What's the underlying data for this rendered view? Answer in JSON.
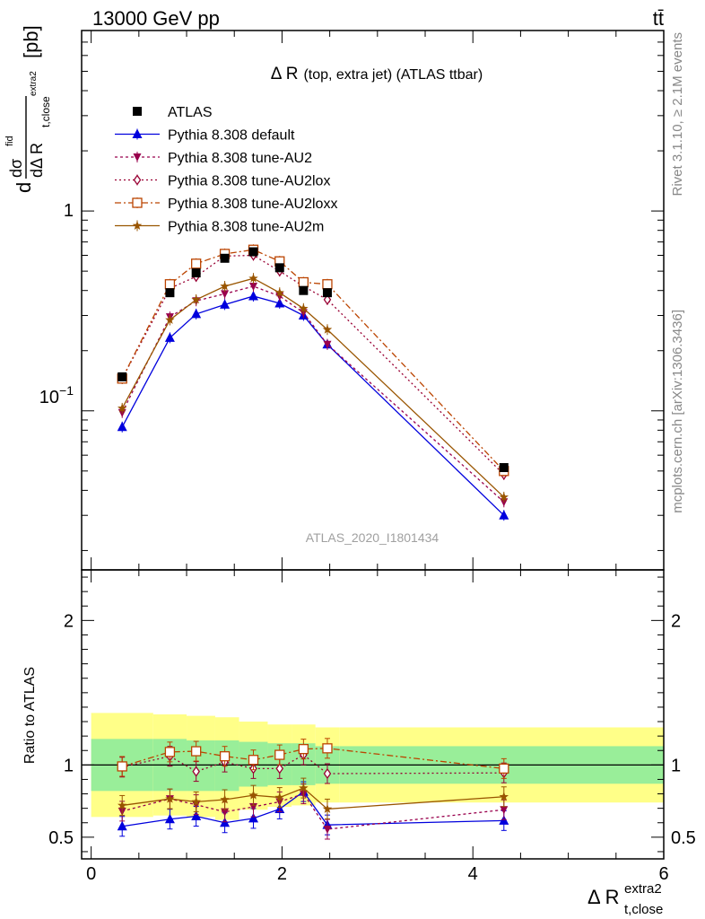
{
  "header": {
    "energy_label": "13000 GeV pp",
    "process_label": "tt̄"
  },
  "side_text": {
    "rivet": "Rivet 3.1.10, ≥ 2.1M events",
    "mcplots": "mcplots.cern.ch [arXiv:1306.3436]"
  },
  "analysis_id": "ATLAS_2020_I1801434",
  "plot_title": {
    "main": "Δ R",
    "sub": "(top, extra jet) (ATLAS ttbar)"
  },
  "ylabel_main": {
    "d_top": "d",
    "sigma": "dσ",
    "sigma_sup": "fid",
    "d_bottom": "dΔ R",
    "sub": "t,close",
    "sup": "extra2",
    "unit": "[pb]"
  },
  "ylabel_ratio": "Ratio to ATLAS",
  "xlabel": {
    "main": "Δ R",
    "sup": "extra2",
    "sub": "t,close"
  },
  "colors": {
    "ATLAS": "#000000",
    "default": "#0000dd",
    "AU2": "#99004d",
    "AU2lox": "#990033",
    "AU2loxx": "#bb4400",
    "AU2m": "#995500",
    "band_inner": "#99ee99",
    "band_outer": "#ffff88"
  },
  "chart_data": [
    {
      "type": "scatter",
      "name": "main",
      "yscale": "log",
      "ylim": [
        0.016,
        8.0
      ],
      "xlim": [
        -0.1,
        6.0
      ],
      "yticks_labeled": [
        {
          "value": 1,
          "label": "1"
        },
        {
          "value": 0.1,
          "label": "10^-1"
        }
      ],
      "legend_placement": "top-left",
      "series": [
        {
          "key": "ATLAS",
          "name": "ATLAS",
          "marker": "square",
          "dash": "none",
          "x": [
            0.325,
            0.825,
            1.1,
            1.4,
            1.7,
            1.975,
            2.225,
            2.475,
            4.325
          ],
          "y": [
            0.148,
            0.39,
            0.49,
            0.58,
            0.625,
            0.52,
            0.4,
            0.39,
            0.052
          ]
        },
        {
          "key": "default",
          "name": "Pythia 8.308 default",
          "marker": "triangle-up",
          "dash": "none",
          "x": [
            0.325,
            0.825,
            1.1,
            1.4,
            1.7,
            1.975,
            2.225,
            2.475,
            4.325
          ],
          "y": [
            0.083,
            0.232,
            0.305,
            0.34,
            0.375,
            0.345,
            0.3,
            0.215,
            0.03
          ]
        },
        {
          "key": "AU2",
          "name": "Pythia 8.308 tune-AU2",
          "marker": "triangle-down",
          "dash": "3,3",
          "x": [
            0.325,
            0.825,
            1.1,
            1.4,
            1.7,
            1.975,
            2.225,
            2.475,
            4.325
          ],
          "y": [
            0.098,
            0.295,
            0.355,
            0.385,
            0.42,
            0.375,
            0.31,
            0.215,
            0.035
          ]
        },
        {
          "key": "AU2lox",
          "name": "Pythia 8.308 tune-AU2lox",
          "marker": "diamond-open",
          "dash": "2,3",
          "x": [
            0.325,
            0.825,
            1.1,
            1.4,
            1.7,
            1.975,
            2.225,
            2.475,
            4.325
          ],
          "y": [
            0.145,
            0.41,
            0.47,
            0.595,
            0.6,
            0.5,
            0.42,
            0.36,
            0.048
          ]
        },
        {
          "key": "AU2loxx",
          "name": "Pythia 8.308 tune-AU2loxx",
          "marker": "square-open",
          "dash": "7,3,2,3",
          "x": [
            0.325,
            0.825,
            1.1,
            1.4,
            1.7,
            1.975,
            2.225,
            2.475,
            4.325
          ],
          "y": [
            0.145,
            0.43,
            0.545,
            0.61,
            0.64,
            0.56,
            0.44,
            0.43,
            0.05
          ]
        },
        {
          "key": "AU2m",
          "name": "Pythia 8.308 tune-AU2m",
          "marker": "star",
          "dash": "none",
          "x": [
            0.325,
            0.825,
            1.1,
            1.4,
            1.7,
            1.975,
            2.225,
            2.475,
            4.325
          ],
          "y": [
            0.103,
            0.285,
            0.36,
            0.42,
            0.46,
            0.39,
            0.325,
            0.255,
            0.037
          ]
        }
      ]
    },
    {
      "type": "scatter",
      "name": "ratio",
      "yscale": "linear",
      "ylim": [
        0.35,
        2.35
      ],
      "xlim": [
        -0.1,
        6.0
      ],
      "xticks_labeled": [
        0,
        2,
        4,
        6
      ],
      "yticks_labeled": [
        0.5,
        1,
        2
      ],
      "reference_line": 1,
      "band_edges": [
        0.0,
        0.65,
        1.0,
        1.3,
        1.55,
        1.85,
        2.1,
        2.35,
        2.6,
        6.0
      ],
      "band_inner": [
        [
          0.82,
          1.18
        ],
        [
          0.82,
          1.18
        ],
        [
          0.82,
          1.17
        ],
        [
          0.82,
          1.17
        ],
        [
          0.85,
          1.16
        ],
        [
          0.86,
          1.15
        ],
        [
          0.86,
          1.15
        ],
        [
          0.87,
          1.13
        ],
        [
          0.87,
          1.13
        ]
      ],
      "band_outer": [
        [
          0.64,
          1.36
        ],
        [
          0.65,
          1.35
        ],
        [
          0.64,
          1.34
        ],
        [
          0.62,
          1.33
        ],
        [
          0.69,
          1.3
        ],
        [
          0.71,
          1.28
        ],
        [
          0.72,
          1.28
        ],
        [
          0.74,
          1.26
        ],
        [
          0.74,
          1.26
        ]
      ],
      "series": [
        {
          "key": "default",
          "x": [
            0.325,
            0.825,
            1.1,
            1.4,
            1.7,
            1.975,
            2.225,
            2.475,
            4.325
          ],
          "y": [
            0.575,
            0.625,
            0.645,
            0.6,
            0.63,
            0.695,
            0.815,
            0.585,
            0.615
          ]
        },
        {
          "key": "AU2",
          "x": [
            0.325,
            0.825,
            1.1,
            1.4,
            1.7,
            1.975,
            2.225,
            2.475,
            4.325
          ],
          "y": [
            0.68,
            0.765,
            0.725,
            0.675,
            0.71,
            0.745,
            0.8,
            0.555,
            0.69
          ]
        },
        {
          "key": "AU2lox",
          "x": [
            0.325,
            0.825,
            1.1,
            1.4,
            1.7,
            1.975,
            2.225,
            2.475,
            4.325
          ],
          "y": [
            0.985,
            1.06,
            0.955,
            1.02,
            0.975,
            0.975,
            1.07,
            0.94,
            0.945
          ]
        },
        {
          "key": "AU2loxx",
          "x": [
            0.325,
            0.825,
            1.1,
            1.4,
            1.7,
            1.975,
            2.225,
            2.475,
            4.325
          ],
          "y": [
            0.99,
            1.09,
            1.095,
            1.06,
            1.035,
            1.07,
            1.11,
            1.115,
            0.975
          ]
        },
        {
          "key": "AU2m",
          "x": [
            0.325,
            0.825,
            1.1,
            1.4,
            1.7,
            1.975,
            2.225,
            2.475,
            4.325
          ],
          "y": [
            0.72,
            0.765,
            0.745,
            0.76,
            0.79,
            0.775,
            0.84,
            0.695,
            0.78
          ]
        }
      ]
    }
  ]
}
